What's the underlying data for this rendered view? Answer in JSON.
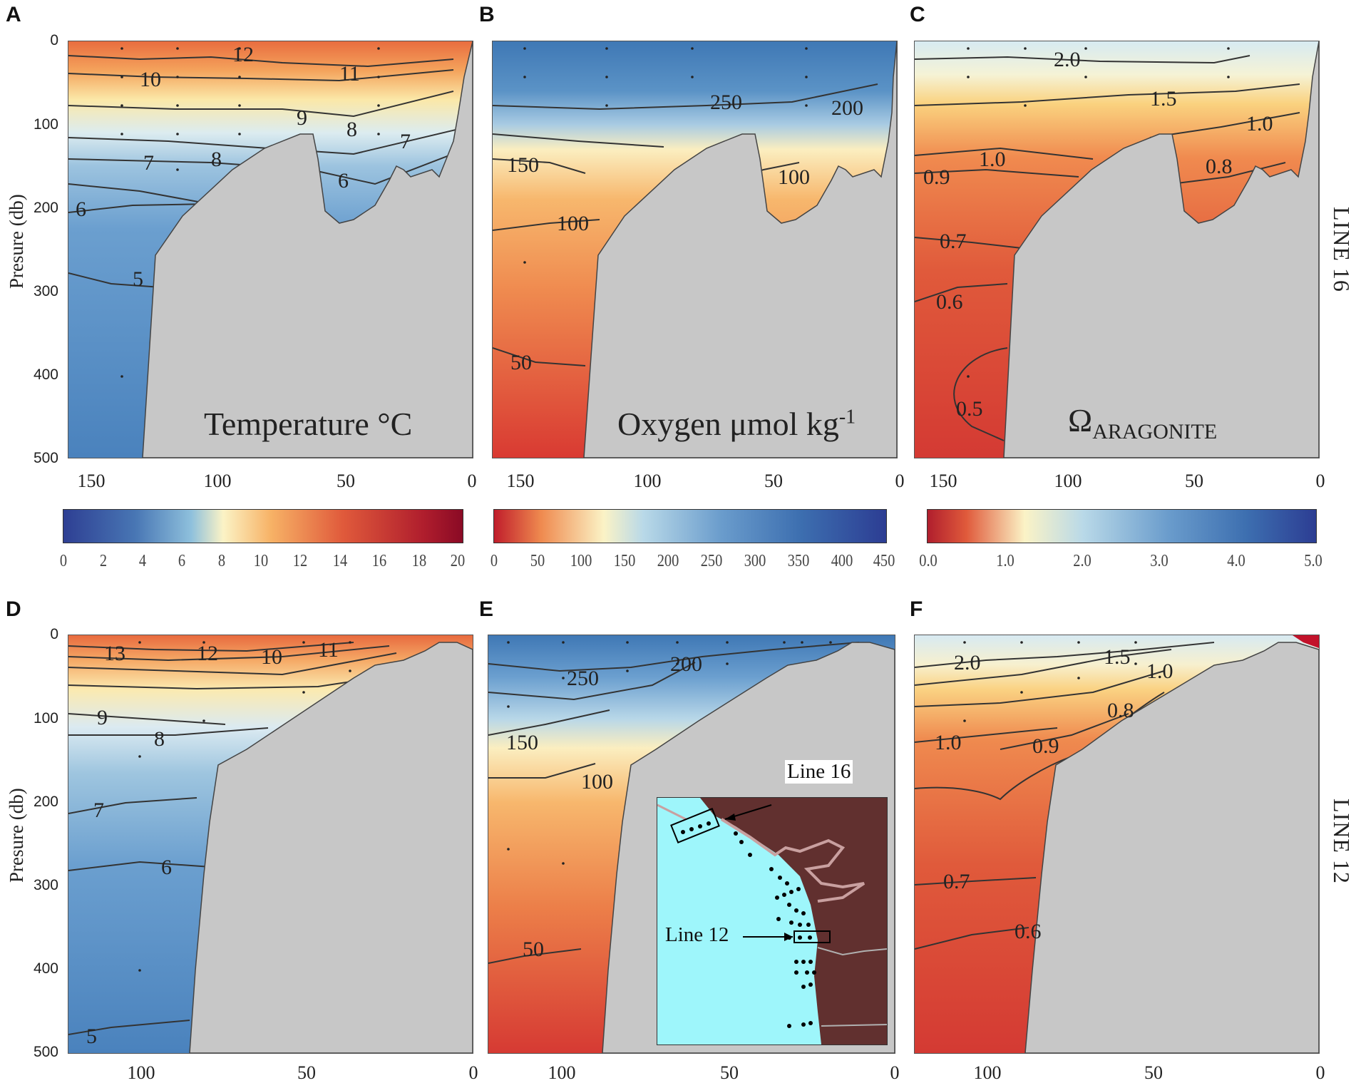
{
  "panels": [
    {
      "letter": "A",
      "title": "Temperature °C",
      "yaxis_label": "Presure (db)",
      "yticks": [
        "0",
        "100",
        "200",
        "300",
        "400",
        "500"
      ],
      "xticks": [
        "150",
        "100",
        "50",
        "0"
      ],
      "contour_labels": [
        "12",
        "11",
        "10",
        "9",
        "8",
        "8",
        "7",
        "7",
        "6",
        "6",
        "5"
      ]
    },
    {
      "letter": "B",
      "title": "Oxygen μmol kg",
      "title_sup": "-1",
      "xticks": [
        "150",
        "100",
        "50",
        "0"
      ],
      "contour_labels": [
        "250",
        "200",
        "150",
        "100",
        "100",
        "50"
      ]
    },
    {
      "letter": "C",
      "title": "Ω",
      "title_sub": "ARAGONITE",
      "xticks": [
        "150",
        "100",
        "50",
        "0"
      ],
      "contour_labels": [
        "2.0",
        "1.5",
        "1.0",
        "1.0",
        "0.9",
        "0.8",
        "0.7",
        "0.6",
        "0.5"
      ]
    },
    {
      "letter": "D",
      "yaxis_label": "Presure (db)",
      "yticks": [
        "0",
        "100",
        "200",
        "300",
        "400",
        "500"
      ],
      "xticks": [
        "100",
        "50",
        "0"
      ],
      "contour_labels": [
        "13",
        "12",
        "10",
        "11",
        "9",
        "8",
        "7",
        "6",
        "5"
      ]
    },
    {
      "letter": "E",
      "xticks": [
        "100",
        "50",
        "0"
      ],
      "contour_labels": [
        "250",
        "200",
        "150",
        "100",
        "50"
      ]
    },
    {
      "letter": "F",
      "xticks": [
        "100",
        "50",
        "0"
      ],
      "contour_labels": [
        "2.0",
        "1.5",
        "1.0",
        "1.0",
        "0.9",
        "0.8",
        "0.7",
        "0.6"
      ]
    }
  ],
  "side_labels": [
    "LINE 16",
    "LINE 12"
  ],
  "colorbars": [
    {
      "ticks": [
        "0",
        "2",
        "4",
        "6",
        "8",
        "10",
        "12",
        "14",
        "16",
        "18",
        "20"
      ]
    },
    {
      "ticks": [
        "0",
        "50",
        "100",
        "150",
        "200",
        "250",
        "300",
        "350",
        "400",
        "450"
      ]
    },
    {
      "ticks": [
        "0.0",
        "1.0",
        "2.0",
        "3.0",
        "4.0",
        "5.0"
      ]
    }
  ],
  "inset": {
    "line16": "Line 16",
    "line12": "Line 12"
  },
  "chart_data": [
    {
      "type": "heatmap",
      "panel": "A",
      "title": "Temperature °C",
      "ylabel": "Presure (db)",
      "ylim": [
        500,
        0
      ],
      "xlim": [
        160,
        0
      ],
      "contours": [
        {
          "level": 12,
          "pressure": 20
        },
        {
          "level": 11,
          "pressure": 35
        },
        {
          "level": 10,
          "pressure": 45
        },
        {
          "level": 9,
          "pressure": 85
        },
        {
          "level": 8,
          "pressure": 130
        },
        {
          "level": 7,
          "pressure": 150
        },
        {
          "level": 6,
          "pressure": 200
        },
        {
          "level": 5,
          "pressure": 305
        }
      ],
      "colorbar": {
        "min": 0,
        "max": 20
      },
      "section": "LINE 16"
    },
    {
      "type": "heatmap",
      "panel": "B",
      "title": "Oxygen μmol kg-1",
      "ylim": [
        500,
        0
      ],
      "xlim": [
        160,
        0
      ],
      "contours": [
        {
          "level": 250,
          "pressure": 80
        },
        {
          "level": 200,
          "pressure": 80
        },
        {
          "level": 150,
          "pressure": 150
        },
        {
          "level": 100,
          "pressure": 215
        },
        {
          "level": 50,
          "pressure": 400
        }
      ],
      "colorbar": {
        "min": 0,
        "max": 450
      },
      "section": "LINE 16"
    },
    {
      "type": "heatmap",
      "panel": "C",
      "title": "ΩARAGONITE",
      "ylim": [
        500,
        0
      ],
      "xlim": [
        160,
        0
      ],
      "contours": [
        {
          "level": 2.0,
          "pressure": 25
        },
        {
          "level": 1.5,
          "pressure": 75
        },
        {
          "level": 1.0,
          "pressure": 140
        },
        {
          "level": 0.9,
          "pressure": 165
        },
        {
          "level": 0.8,
          "pressure": 150
        },
        {
          "level": 0.7,
          "pressure": 240
        },
        {
          "level": 0.6,
          "pressure": 320
        },
        {
          "level": 0.5,
          "pressure": 430
        }
      ],
      "colorbar": {
        "min": 0,
        "max": 5
      },
      "section": "LINE 16"
    },
    {
      "type": "heatmap",
      "panel": "D",
      "ylabel": "Presure (db)",
      "ylim": [
        500,
        0
      ],
      "xlim": [
        125,
        0
      ],
      "contours": [
        {
          "level": 13,
          "pressure": 15
        },
        {
          "level": 12,
          "pressure": 20
        },
        {
          "level": 11,
          "pressure": 15
        },
        {
          "level": 10,
          "pressure": 25
        },
        {
          "level": 9,
          "pressure": 100
        },
        {
          "level": 8,
          "pressure": 125
        },
        {
          "level": 7,
          "pressure": 200
        },
        {
          "level": 6,
          "pressure": 280
        },
        {
          "level": 5,
          "pressure": 470
        }
      ],
      "section": "LINE 12"
    },
    {
      "type": "heatmap",
      "panel": "E",
      "ylim": [
        500,
        0
      ],
      "xlim": [
        125,
        0
      ],
      "contours": [
        {
          "level": 250,
          "pressure": 50
        },
        {
          "level": 200,
          "pressure": 30
        },
        {
          "level": 150,
          "pressure": 120
        },
        {
          "level": 100,
          "pressure": 170
        },
        {
          "level": 50,
          "pressure": 400
        }
      ],
      "section": "LINE 12"
    },
    {
      "type": "heatmap",
      "panel": "F",
      "ylim": [
        500,
        0
      ],
      "xlim": [
        125,
        0
      ],
      "contours": [
        {
          "level": 2.0,
          "pressure": 30
        },
        {
          "level": 1.5,
          "pressure": 25
        },
        {
          "level": 1.0,
          "pressure": 40
        },
        {
          "level": 1.0,
          "pressure": 120
        },
        {
          "level": 0.9,
          "pressure": 120
        },
        {
          "level": 0.8,
          "pressure": 85
        },
        {
          "level": 0.7,
          "pressure": 290
        },
        {
          "level": 0.6,
          "pressure": 360
        }
      ],
      "section": "LINE 12"
    }
  ]
}
